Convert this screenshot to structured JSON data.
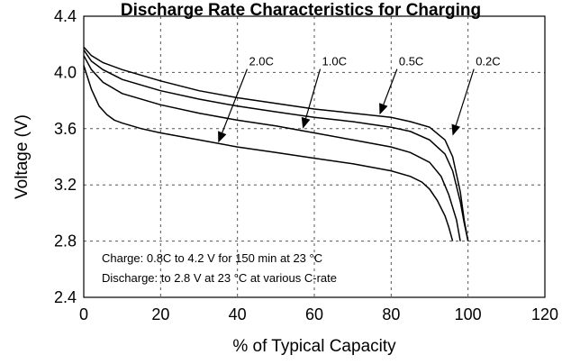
{
  "chart_data": {
    "type": "line",
    "title": "Discharge Rate Characteristics for Charging",
    "xlabel": "% of Typical Capacity",
    "ylabel": "Voltage (V)",
    "xlim": [
      0,
      120
    ],
    "ylim": [
      2.4,
      4.4
    ],
    "xticks": [
      "0",
      "20",
      "40",
      "60",
      "80",
      "100",
      "120"
    ],
    "yticks": [
      "2.4",
      "2.8",
      "3.2",
      "3.6",
      "4.0",
      "4.4"
    ],
    "grid": true,
    "series": [
      {
        "name": "2.0C",
        "x": [
          0,
          2,
          4,
          6,
          8,
          10,
          15,
          20,
          30,
          40,
          50,
          60,
          70,
          80,
          85,
          88,
          90,
          92,
          94,
          95,
          96
        ],
        "y": [
          4.05,
          3.88,
          3.76,
          3.7,
          3.66,
          3.64,
          3.6,
          3.57,
          3.52,
          3.47,
          3.43,
          3.39,
          3.35,
          3.3,
          3.26,
          3.22,
          3.17,
          3.09,
          2.98,
          2.9,
          2.8
        ]
      },
      {
        "name": "1.0C",
        "x": [
          0,
          2,
          5,
          10,
          20,
          30,
          40,
          50,
          60,
          70,
          80,
          85,
          90,
          93,
          95,
          97,
          98
        ],
        "y": [
          4.12,
          4.02,
          3.93,
          3.85,
          3.77,
          3.71,
          3.66,
          3.62,
          3.57,
          3.52,
          3.47,
          3.43,
          3.36,
          3.26,
          3.13,
          2.95,
          2.8
        ]
      },
      {
        "name": "0.5C",
        "x": [
          0,
          2,
          5,
          10,
          20,
          30,
          40,
          50,
          60,
          70,
          80,
          85,
          90,
          94,
          96,
          98,
          99,
          100
        ],
        "y": [
          4.16,
          4.08,
          4.02,
          3.95,
          3.87,
          3.81,
          3.76,
          3.72,
          3.68,
          3.65,
          3.61,
          3.58,
          3.52,
          3.42,
          3.3,
          3.08,
          2.93,
          2.8
        ]
      },
      {
        "name": "0.2C",
        "x": [
          0,
          2,
          5,
          10,
          20,
          30,
          40,
          50,
          60,
          70,
          80,
          85,
          90,
          94,
          96,
          98,
          99,
          100
        ],
        "y": [
          4.18,
          4.12,
          4.07,
          4.02,
          3.94,
          3.87,
          3.82,
          3.78,
          3.74,
          3.71,
          3.68,
          3.65,
          3.61,
          3.52,
          3.4,
          3.15,
          2.95,
          2.8
        ]
      }
    ],
    "series_annotations": [
      {
        "name": "2.0C",
        "label_x": 43,
        "label_y": 4.05,
        "arrow_to_x": 35,
        "arrow_to_y": 3.5
      },
      {
        "name": "1.0C",
        "label_x": 62,
        "label_y": 4.05,
        "arrow_to_x": 57,
        "arrow_to_y": 3.6
      },
      {
        "name": "0.5C",
        "label_x": 82,
        "label_y": 4.05,
        "arrow_to_x": 77,
        "arrow_to_y": 3.7
      },
      {
        "name": "0.2C",
        "label_x": 102,
        "label_y": 4.05,
        "arrow_to_x": 96,
        "arrow_to_y": 3.55
      }
    ],
    "notes": [
      "Charge: 0.8C to 4.2 V for 150 min at 23 °C",
      "Discharge: to 2.8 V at 23 °C at various C-rate"
    ]
  }
}
